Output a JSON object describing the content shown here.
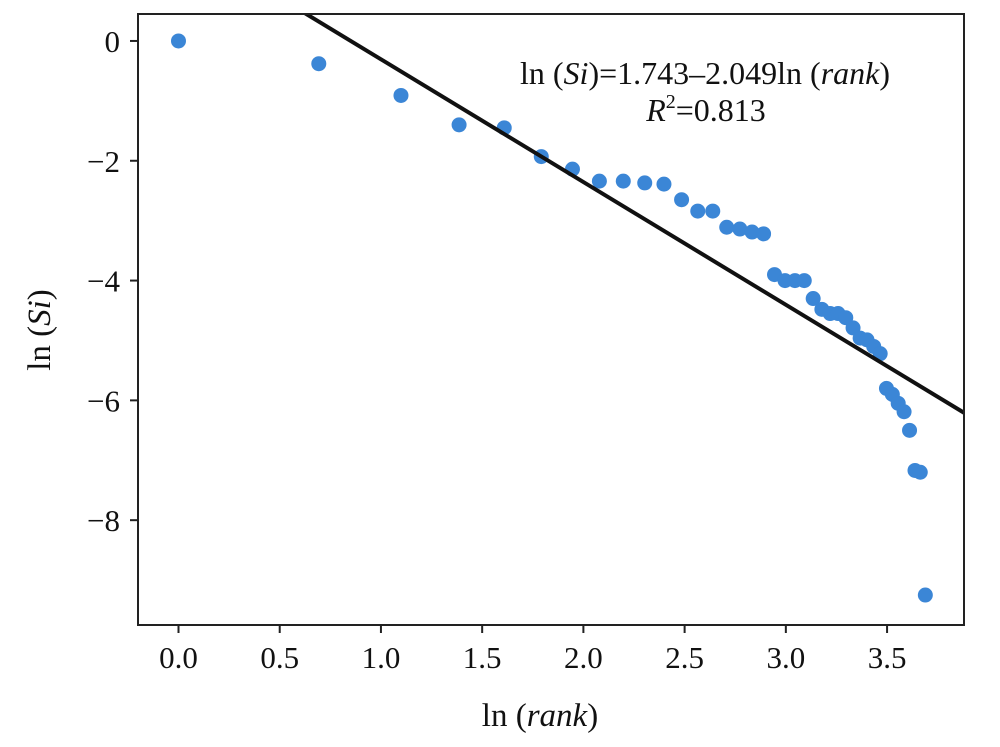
{
  "chart_data": {
    "type": "scatter",
    "xlabel": "ln (rank)",
    "ylabel": "ln (Si)",
    "xlim": [
      -0.2,
      3.88
    ],
    "ylim": [
      -9.75,
      0.45
    ],
    "x_ticks": [
      0.0,
      0.5,
      1.0,
      1.5,
      2.0,
      2.5,
      3.0,
      3.5
    ],
    "x_tick_labels": [
      "0.0",
      "0.5",
      "1.0",
      "1.5",
      "2.0",
      "2.5",
      "3.0",
      "3.5"
    ],
    "y_ticks": [
      0,
      -2,
      -4,
      -6,
      -8
    ],
    "y_tick_labels": [
      "0",
      "−2",
      "−4",
      "−6",
      "−8"
    ],
    "grid": false,
    "point_color": "#3b86d6",
    "line_color": "#111111",
    "series": [
      {
        "values": [
          [
            0.0,
            0.0
          ],
          [
            0.693,
            -0.38
          ],
          [
            1.099,
            -0.91
          ],
          [
            1.386,
            -1.4
          ],
          [
            1.609,
            -1.45
          ],
          [
            1.792,
            -1.93
          ],
          [
            1.946,
            -2.14
          ],
          [
            2.079,
            -2.34
          ],
          [
            2.197,
            -2.34
          ],
          [
            2.303,
            -2.37
          ],
          [
            2.398,
            -2.39
          ],
          [
            2.485,
            -2.65
          ],
          [
            2.565,
            -2.84
          ],
          [
            2.639,
            -2.84
          ],
          [
            2.708,
            -3.11
          ],
          [
            2.773,
            -3.14
          ],
          [
            2.833,
            -3.19
          ],
          [
            2.89,
            -3.22
          ],
          [
            2.944,
            -3.9
          ],
          [
            2.996,
            -4.0
          ],
          [
            3.045,
            -4.0
          ],
          [
            3.091,
            -4.0
          ],
          [
            3.135,
            -4.3
          ],
          [
            3.178,
            -4.48
          ],
          [
            3.219,
            -4.55
          ],
          [
            3.258,
            -4.55
          ],
          [
            3.296,
            -4.62
          ],
          [
            3.332,
            -4.79
          ],
          [
            3.367,
            -4.96
          ],
          [
            3.401,
            -4.99
          ],
          [
            3.434,
            -5.1
          ],
          [
            3.466,
            -5.22
          ],
          [
            3.497,
            -5.8
          ],
          [
            3.526,
            -5.9
          ],
          [
            3.555,
            -6.05
          ],
          [
            3.584,
            -6.19
          ],
          [
            3.611,
            -6.5
          ],
          [
            3.638,
            -7.17
          ],
          [
            3.664,
            -7.2
          ],
          [
            3.689,
            -9.25
          ]
        ]
      }
    ],
    "fit_line": {
      "intercept": 1.743,
      "slope": -2.049
    },
    "annotation": {
      "equation_parts": [
        "ln (",
        "Si",
        ")=1.743–2.049ln (",
        "rank",
        ")"
      ],
      "r2_symbol": "R",
      "r2_exponent": "2",
      "r2_value": "=0.813"
    }
  }
}
